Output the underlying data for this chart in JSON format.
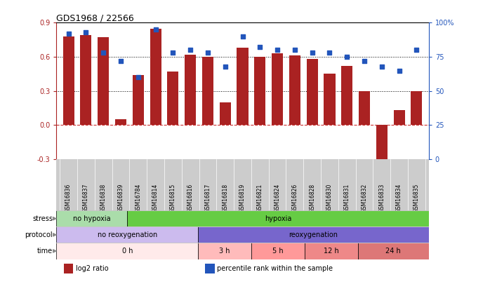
{
  "title": "GDS1968 / 22566",
  "samples": [
    "GSM16836",
    "GSM16837",
    "GSM16838",
    "GSM16839",
    "GSM16784",
    "GSM16814",
    "GSM16815",
    "GSM16816",
    "GSM16817",
    "GSM16818",
    "GSM16819",
    "GSM16821",
    "GSM16824",
    "GSM16826",
    "GSM16828",
    "GSM16830",
    "GSM16831",
    "GSM16832",
    "GSM16833",
    "GSM16834",
    "GSM16835"
  ],
  "log2_ratio": [
    0.78,
    0.79,
    0.77,
    0.05,
    0.44,
    0.85,
    0.47,
    0.62,
    0.6,
    0.2,
    0.68,
    0.6,
    0.63,
    0.61,
    0.58,
    0.45,
    0.52,
    0.3,
    -0.35,
    0.13,
    0.3
  ],
  "percentile": [
    92,
    93,
    78,
    72,
    60,
    95,
    78,
    80,
    78,
    68,
    90,
    82,
    80,
    80,
    78,
    78,
    75,
    72,
    68,
    65,
    80
  ],
  "bar_color": "#aa2222",
  "dot_color": "#2255bb",
  "ylim_left": [
    -0.3,
    0.9
  ],
  "ylim_right": [
    0,
    100
  ],
  "yticks_left": [
    -0.3,
    0.0,
    0.3,
    0.6,
    0.9
  ],
  "yticks_right": [
    0,
    25,
    50,
    75,
    100
  ],
  "ytick_labels_right": [
    "0",
    "25",
    "50",
    "75",
    "100%"
  ],
  "hlines": [
    0.3,
    0.6
  ],
  "hline_zero_color": "#cc3333",
  "stress_groups": [
    {
      "label": "no hypoxia",
      "start": 0,
      "end": 4,
      "color": "#aaddaa"
    },
    {
      "label": "hypoxia",
      "start": 4,
      "end": 21,
      "color": "#66cc44"
    }
  ],
  "protocol_groups": [
    {
      "label": "no reoxygenation",
      "start": 0,
      "end": 8,
      "color": "#ccbbee"
    },
    {
      "label": "reoxygenation",
      "start": 8,
      "end": 21,
      "color": "#7766cc"
    }
  ],
  "time_groups": [
    {
      "label": "0 h",
      "start": 0,
      "end": 8,
      "color": "#ffeaea"
    },
    {
      "label": "3 h",
      "start": 8,
      "end": 11,
      "color": "#ffbbbb"
    },
    {
      "label": "5 h",
      "start": 11,
      "end": 14,
      "color": "#ff9999"
    },
    {
      "label": "12 h",
      "start": 14,
      "end": 17,
      "color": "#ee8888"
    },
    {
      "label": "24 h",
      "start": 17,
      "end": 21,
      "color": "#dd7777"
    }
  ],
  "legend_items": [
    {
      "label": "log2 ratio",
      "color": "#aa2222"
    },
    {
      "label": "percentile rank within the sample",
      "color": "#2255bb"
    }
  ],
  "row_labels": [
    "stress",
    "protocol",
    "time"
  ],
  "sample_bg": "#cccccc",
  "background_color": "#ffffff"
}
